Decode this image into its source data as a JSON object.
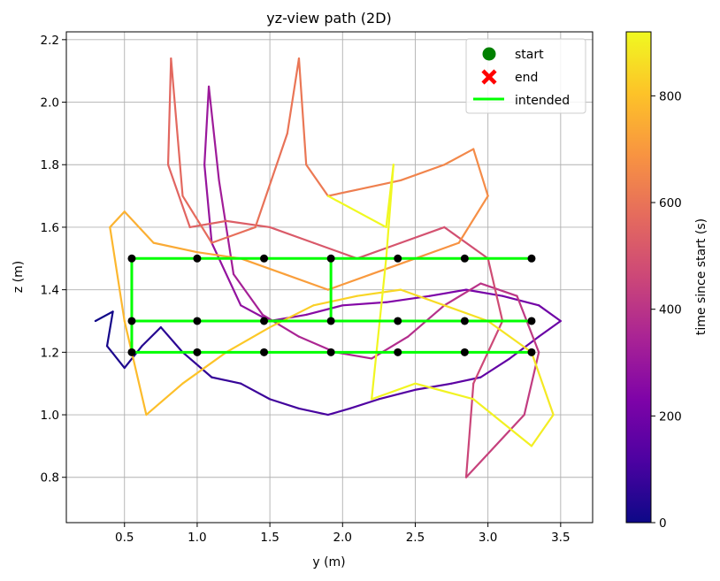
{
  "chart_data": {
    "type": "line",
    "title": "yz-view path (2D)",
    "xlabel": "y (m)",
    "ylabel": "z (m)",
    "xlim": [
      0.1,
      3.72
    ],
    "ylim": [
      0.655,
      2.225
    ],
    "xticks": [
      0.5,
      1.0,
      1.5,
      2.0,
      2.5,
      3.0,
      3.5
    ],
    "yticks": [
      0.8,
      1.0,
      1.2,
      1.4,
      1.6,
      1.8,
      2.0,
      2.2
    ],
    "grid": true,
    "legend": {
      "placement": "upper-right",
      "entries": [
        {
          "label": "start",
          "marker": "circle",
          "color": "#008000"
        },
        {
          "label": "end",
          "marker": "x",
          "color": "#ff0000"
        },
        {
          "label": "intended",
          "marker": "line",
          "color": "#00ff00"
        }
      ]
    },
    "colorbar": {
      "label": "time since start (s)",
      "colormap": "plasma",
      "range": [
        0,
        920
      ],
      "ticks": [
        0,
        200,
        400,
        600,
        800
      ]
    },
    "intended_path": {
      "color": "#00ff00",
      "rows_z": [
        1.5,
        1.3,
        1.2
      ],
      "waypoints_y": [
        0.55,
        1.0,
        1.46,
        1.92,
        2.38,
        2.84,
        3.3
      ],
      "segments": [
        [
          [
            0.55,
            1.5
          ],
          [
            3.3,
            1.5
          ]
        ],
        [
          [
            0.55,
            1.3
          ],
          [
            3.3,
            1.3
          ]
        ],
        [
          [
            0.55,
            1.2
          ],
          [
            3.3,
            1.2
          ]
        ],
        [
          [
            0.55,
            1.5
          ],
          [
            0.55,
            1.2
          ]
        ],
        [
          [
            1.92,
            1.5
          ],
          [
            1.92,
            1.3
          ]
        ]
      ]
    },
    "waypoints": [
      [
        0.55,
        1.5
      ],
      [
        1.0,
        1.5
      ],
      [
        1.46,
        1.5
      ],
      [
        1.92,
        1.5
      ],
      [
        2.38,
        1.5
      ],
      [
        2.84,
        1.5
      ],
      [
        3.3,
        1.5
      ],
      [
        0.55,
        1.3
      ],
      [
        1.0,
        1.3
      ],
      [
        1.46,
        1.3
      ],
      [
        1.92,
        1.3
      ],
      [
        2.38,
        1.3
      ],
      [
        2.84,
        1.3
      ],
      [
        3.3,
        1.3
      ],
      [
        0.55,
        1.2
      ],
      [
        1.0,
        1.2
      ],
      [
        1.46,
        1.2
      ],
      [
        1.92,
        1.2
      ],
      [
        2.38,
        1.2
      ],
      [
        2.84,
        1.2
      ],
      [
        3.3,
        1.2
      ]
    ],
    "trajectory": [
      [
        0.3,
        1.3,
        0
      ],
      [
        0.42,
        1.33,
        10
      ],
      [
        0.38,
        1.22,
        20
      ],
      [
        0.5,
        1.15,
        30
      ],
      [
        0.62,
        1.22,
        40
      ],
      [
        0.75,
        1.28,
        50
      ],
      [
        0.9,
        1.2,
        60
      ],
      [
        1.1,
        1.12,
        70
      ],
      [
        1.3,
        1.1,
        80
      ],
      [
        1.5,
        1.05,
        90
      ],
      [
        1.7,
        1.02,
        100
      ],
      [
        1.9,
        1.0,
        110
      ],
      [
        2.05,
        1.02,
        120
      ],
      [
        2.25,
        1.05,
        130
      ],
      [
        2.5,
        1.08,
        140
      ],
      [
        2.75,
        1.1,
        150
      ],
      [
        2.95,
        1.12,
        160
      ],
      [
        3.15,
        1.18,
        170
      ],
      [
        3.35,
        1.25,
        180
      ],
      [
        3.5,
        1.3,
        190
      ],
      [
        3.35,
        1.35,
        200
      ],
      [
        3.1,
        1.38,
        210
      ],
      [
        2.85,
        1.4,
        220
      ],
      [
        2.6,
        1.38,
        230
      ],
      [
        2.3,
        1.36,
        240
      ],
      [
        2.0,
        1.35,
        250
      ],
      [
        1.75,
        1.32,
        260
      ],
      [
        1.5,
        1.3,
        270
      ],
      [
        1.3,
        1.35,
        280
      ],
      [
        1.1,
        1.55,
        290
      ],
      [
        1.05,
        1.8,
        300
      ],
      [
        1.08,
        2.05,
        310
      ],
      [
        1.15,
        1.75,
        320
      ],
      [
        1.25,
        1.45,
        330
      ],
      [
        1.45,
        1.32,
        340
      ],
      [
        1.7,
        1.25,
        350
      ],
      [
        1.95,
        1.2,
        360
      ],
      [
        2.2,
        1.18,
        370
      ],
      [
        2.45,
        1.25,
        380
      ],
      [
        2.7,
        1.35,
        390
      ],
      [
        2.95,
        1.42,
        400
      ],
      [
        3.2,
        1.38,
        410
      ],
      [
        3.35,
        1.2,
        420
      ],
      [
        3.25,
        1.0,
        430
      ],
      [
        3.05,
        0.9,
        440
      ],
      [
        2.85,
        0.8,
        450
      ],
      [
        2.9,
        1.1,
        460
      ],
      [
        3.1,
        1.3,
        470
      ],
      [
        3.0,
        1.5,
        480
      ],
      [
        2.7,
        1.6,
        490
      ],
      [
        2.4,
        1.55,
        500
      ],
      [
        2.1,
        1.5,
        510
      ],
      [
        1.8,
        1.55,
        520
      ],
      [
        1.5,
        1.6,
        530
      ],
      [
        1.2,
        1.62,
        540
      ],
      [
        0.95,
        1.6,
        550
      ],
      [
        0.8,
        1.8,
        560
      ],
      [
        0.82,
        2.14,
        565
      ],
      [
        0.9,
        1.7,
        570
      ],
      [
        1.1,
        1.55,
        580
      ],
      [
        1.4,
        1.6,
        590
      ],
      [
        1.62,
        1.9,
        600
      ],
      [
        1.7,
        2.14,
        605
      ],
      [
        1.75,
        1.8,
        610
      ],
      [
        1.9,
        1.7,
        620
      ],
      [
        2.1,
        1.72,
        630
      ],
      [
        2.4,
        1.75,
        640
      ],
      [
        2.7,
        1.8,
        650
      ],
      [
        2.9,
        1.85,
        660
      ],
      [
        3.0,
        1.7,
        670
      ],
      [
        2.8,
        1.55,
        680
      ],
      [
        2.5,
        1.5,
        690
      ],
      [
        2.2,
        1.45,
        700
      ],
      [
        1.9,
        1.4,
        710
      ],
      [
        1.6,
        1.45,
        720
      ],
      [
        1.3,
        1.5,
        730
      ],
      [
        1.0,
        1.52,
        740
      ],
      [
        0.7,
        1.55,
        750
      ],
      [
        0.5,
        1.65,
        760
      ],
      [
        0.4,
        1.6,
        770
      ],
      [
        0.5,
        1.3,
        780
      ],
      [
        0.65,
        1.0,
        790
      ],
      [
        0.9,
        1.1,
        800
      ],
      [
        1.2,
        1.2,
        810
      ],
      [
        1.5,
        1.28,
        820
      ],
      [
        1.8,
        1.35,
        830
      ],
      [
        2.1,
        1.38,
        840
      ],
      [
        2.4,
        1.4,
        850
      ],
      [
        2.7,
        1.35,
        860
      ],
      [
        3.0,
        1.3,
        870
      ],
      [
        3.3,
        1.2,
        880
      ],
      [
        3.45,
        1.0,
        890
      ],
      [
        3.3,
        0.9,
        900
      ],
      [
        2.9,
        1.05,
        905
      ],
      [
        2.5,
        1.1,
        910
      ],
      [
        2.2,
        1.05,
        912
      ],
      [
        2.3,
        1.5,
        914
      ],
      [
        2.35,
        1.8,
        916
      ],
      [
        2.3,
        1.6,
        918
      ],
      [
        1.9,
        1.7,
        920
      ]
    ]
  }
}
